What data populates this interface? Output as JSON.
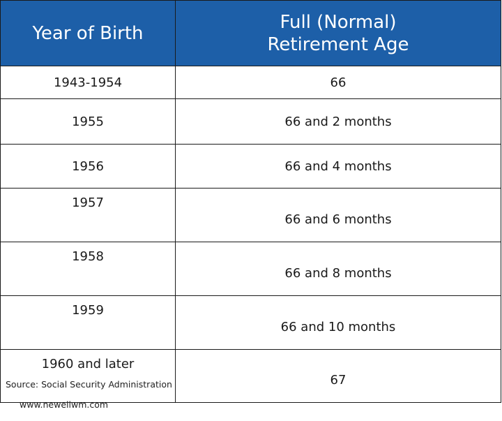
{
  "table": {
    "headers": [
      "Year of Birth",
      "Full (Normal)\nRetirement Age"
    ],
    "rows": [
      {
        "year": "1943-1954",
        "age": "66"
      },
      {
        "year": "1955",
        "age": "66 and 2 months"
      },
      {
        "year": "1956",
        "age": "66 and 4 months"
      },
      {
        "year": "1957",
        "age": "66 and 6 months"
      },
      {
        "year": "1958",
        "age": "66 and 8 months"
      },
      {
        "year": "1959",
        "age": "66 and 10 months"
      },
      {
        "year": "1960 and later",
        "age": "67"
      }
    ]
  },
  "footer": {
    "source": "Source: Social Security Administration",
    "website": "www.newellwm.com"
  },
  "colors": {
    "header_background": "#1d5fa8",
    "header_text": "#ffffff",
    "border": "#1a1a1a"
  }
}
